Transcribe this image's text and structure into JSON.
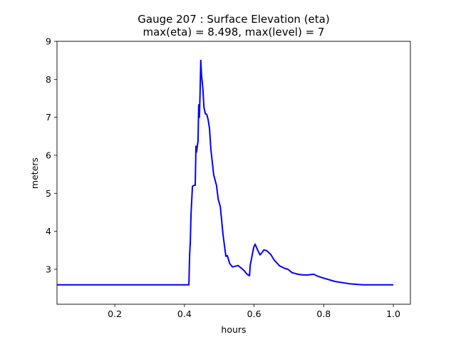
{
  "chart_data": {
    "type": "line",
    "title": "Gauge 207 : Surface Elevation (eta)",
    "subtitle": "max(eta) =   8.498,    max(level) = 7",
    "xlabel": "hours",
    "ylabel": "meters",
    "xlim": [
      0.034,
      1.049
    ],
    "ylim": [
      2.08,
      9
    ],
    "xticks": [
      0.2,
      0.4,
      0.6,
      0.8,
      1.0
    ],
    "xtick_labels": [
      "0.2",
      "0.4",
      "0.6",
      "0.8",
      "1.0"
    ],
    "yticks": [
      3,
      4,
      5,
      6,
      7,
      8,
      9
    ],
    "ytick_labels": [
      "3",
      "4",
      "5",
      "6",
      "7",
      "8",
      "9"
    ],
    "grid": false,
    "series": [
      {
        "name": "eta",
        "color": "#0000ff",
        "x": [
          0.034,
          0.4128,
          0.4148,
          0.4169,
          0.4189,
          0.423,
          0.4271,
          0.431,
          0.433,
          0.435,
          0.437,
          0.439,
          0.441,
          0.443,
          0.445,
          0.447,
          0.449,
          0.453,
          0.456,
          0.46,
          0.464,
          0.468,
          0.472,
          0.476,
          0.484,
          0.492,
          0.497,
          0.503,
          0.511,
          0.519,
          0.523,
          0.53,
          0.538,
          0.546,
          0.554,
          0.562,
          0.572,
          0.58,
          0.587,
          0.589,
          0.593,
          0.599,
          0.603,
          0.609,
          0.617,
          0.623,
          0.628,
          0.636,
          0.648,
          0.658,
          0.673,
          0.689,
          0.697,
          0.709,
          0.726,
          0.74,
          0.755,
          0.771,
          0.785,
          0.802,
          0.832,
          0.873,
          0.914,
          1.0
        ],
        "y": [
          2.59,
          2.59,
          3.37,
          3.71,
          4.46,
          5.18,
          5.21,
          5.21,
          6.24,
          6.09,
          6.24,
          6.37,
          7.33,
          7.0,
          7.65,
          8.498,
          8.12,
          7.74,
          7.27,
          7.09,
          7.08,
          6.94,
          6.71,
          6.15,
          5.49,
          5.21,
          4.84,
          4.65,
          3.9,
          3.34,
          3.36,
          3.15,
          3.06,
          3.08,
          3.1,
          3.04,
          2.96,
          2.87,
          2.83,
          3.11,
          3.3,
          3.58,
          3.66,
          3.53,
          3.38,
          3.44,
          3.51,
          3.49,
          3.39,
          3.24,
          3.09,
          3.02,
          3.0,
          2.91,
          2.87,
          2.85,
          2.85,
          2.87,
          2.81,
          2.76,
          2.68,
          2.62,
          2.59,
          2.59
        ]
      }
    ]
  }
}
